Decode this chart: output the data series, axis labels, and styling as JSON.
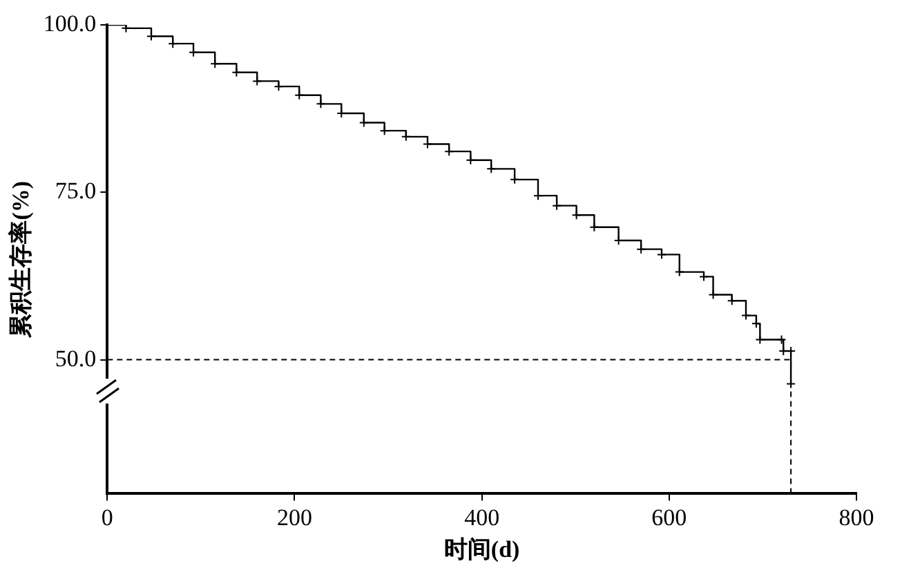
{
  "chart_data": {
    "type": "step",
    "xlabel": "时间(d)",
    "ylabel": "累积生存率(%)",
    "x": [
      0,
      20,
      47,
      70,
      92,
      115,
      138,
      160,
      183,
      205,
      228,
      250,
      274,
      296,
      319,
      342,
      365,
      388,
      410,
      435,
      460,
      480,
      501,
      520,
      546,
      570,
      592,
      611,
      637,
      647,
      667,
      682,
      693,
      697,
      720,
      722,
      730,
      730
    ],
    "series": [
      {
        "color": "#000000",
        "values": [
          100,
          99.5,
          98.3,
          97.2,
          95.9,
          94.2,
          92.9,
          91.6,
          90.8,
          89.5,
          88.2,
          86.8,
          85.4,
          84.2,
          83.3,
          82.2,
          81.1,
          79.8,
          78.5,
          76.9,
          74.5,
          73.0,
          71.6,
          69.8,
          67.8,
          66.5,
          65.7,
          63.1,
          62.4,
          59.7,
          58.8,
          56.6,
          55.4,
          53.0,
          53.0,
          51.3,
          51.3,
          46.4
        ]
      }
    ],
    "xlim": [
      0,
      800
    ],
    "xticks": [
      0,
      200,
      400,
      600,
      800
    ],
    "ylim": [
      30,
      100
    ],
    "yticks": [
      {
        "value": 50,
        "label": "50.0"
      },
      {
        "value": 75,
        "label": "75.0"
      },
      {
        "value": 100,
        "label": "100.0"
      }
    ],
    "ref_lines": [
      {
        "axis": "y",
        "value": 50,
        "line_style": "dashed"
      },
      {
        "axis": "x",
        "value": 730,
        "line_style": "dashed"
      }
    ],
    "marker": "cross",
    "grid": false,
    "legend": false
  }
}
